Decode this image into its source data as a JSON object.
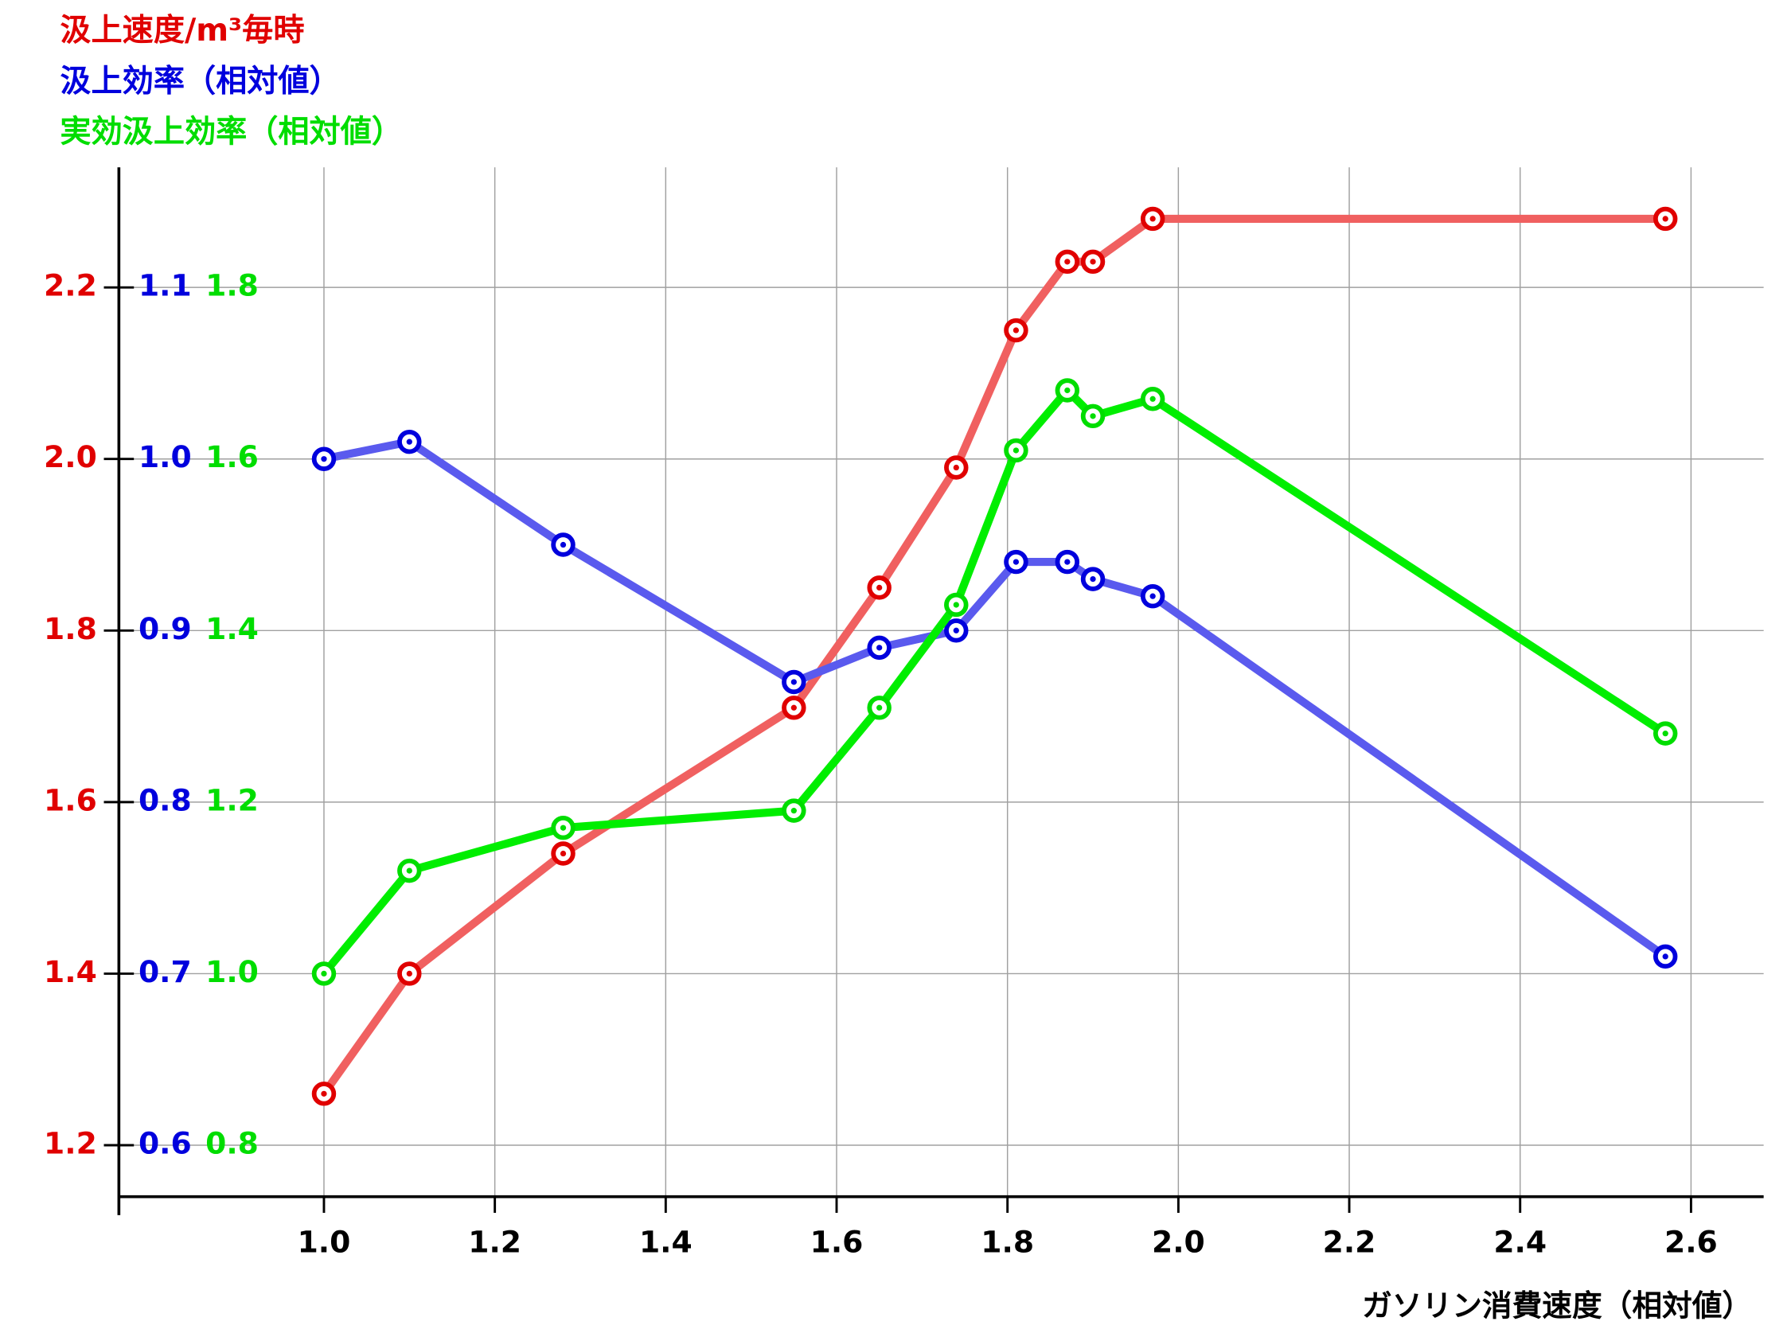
{
  "chart_data": {
    "type": "line",
    "xlabel": "ガソリン消費速度（相対値）",
    "x": [
      1.0,
      1.1,
      1.28,
      1.55,
      1.65,
      1.74,
      1.81,
      1.87,
      1.9,
      1.97,
      2.57
    ],
    "xlim": [
      0.76,
      2.685
    ],
    "xticks": [
      {
        "value": 1,
        "label": "1.0"
      },
      1.2,
      1.4,
      1.6,
      1.8,
      {
        "value": 2,
        "label": "2.0"
      },
      2.2,
      2.4,
      2.6
    ],
    "ylim": [
      1.14,
      2.34
    ],
    "yticks": [
      1.2,
      1.4,
      1.6,
      1.8,
      {
        "value": 2,
        "label": "2.0"
      },
      2.2
    ],
    "y2lim": [
      0.57,
      1.17
    ],
    "y2ticks": [
      0.6,
      0.7,
      0.8,
      0.9,
      {
        "value": 1,
        "label": "1.0"
      },
      1.1
    ],
    "y3lim": [
      0.74,
      1.94
    ],
    "y3ticks": [
      0.8,
      {
        "value": 1,
        "label": "1.0"
      },
      1.2,
      1.4,
      1.6,
      1.8
    ],
    "grid": true,
    "series": [
      {
        "name": "汲上速度/m³毎時",
        "color": "#e00000",
        "line_color": "#f06060",
        "values": [
          1.26,
          1.4,
          1.54,
          1.71,
          1.85,
          1.99,
          2.15,
          2.23,
          2.23,
          2.28,
          2.28
        ]
      },
      {
        "name": "汲上効率（相対値）",
        "color": "#0000dd",
        "line_color": "#5a5aee",
        "axis": "y2",
        "values": [
          1.0,
          1.01,
          0.95,
          0.87,
          0.89,
          0.9,
          0.94,
          0.94,
          0.93,
          0.92,
          0.71
        ]
      },
      {
        "name": "実効汲上効率（相対値）",
        "color": "#00dd00",
        "line_color": "#00ee00",
        "axis": "y3",
        "values": [
          1.0,
          1.12,
          1.17,
          1.19,
          1.31,
          1.43,
          1.61,
          1.68,
          1.65,
          1.67,
          1.28
        ]
      }
    ]
  }
}
